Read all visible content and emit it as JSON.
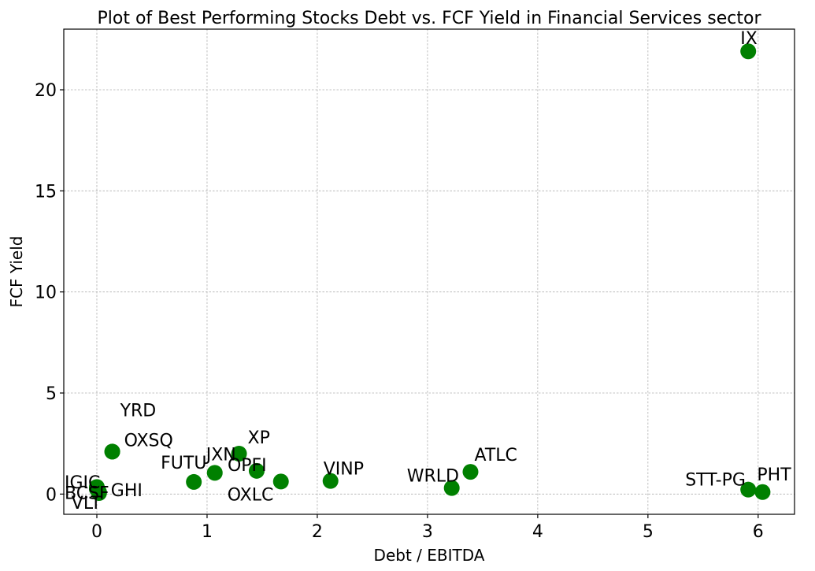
{
  "chart_data": {
    "type": "scatter",
    "title": "Plot of Best Performing Stocks Debt vs. FCF Yield in Financial Services sector",
    "xlabel": "Debt / EBITDA",
    "ylabel": "FCF Yield",
    "xlim": [
      -0.3,
      6.33
    ],
    "ylim": [
      -1.0,
      23.0
    ],
    "xticks": [
      0,
      1,
      2,
      3,
      4,
      5,
      6
    ],
    "yticks": [
      0,
      5,
      10,
      15,
      20
    ],
    "grid": true,
    "marker_color": "#008000",
    "points": [
      {
        "label": "IX",
        "x": 5.91,
        "y": 21.9
      },
      {
        "label": "YRD",
        "x": 0.14,
        "y": 2.1
      },
      {
        "label": "OXSQ",
        "x": 0.14,
        "y": 2.1
      },
      {
        "label": "BCSF",
        "x": 0.0,
        "y": 0.35
      },
      {
        "label": "IGIC",
        "x": 0.0,
        "y": 0.25
      },
      {
        "label": "GHI",
        "x": 0.02,
        "y": 0.1
      },
      {
        "label": "VLT",
        "x": 0.02,
        "y": 0.05
      },
      {
        "label": "FUTU",
        "x": 0.88,
        "y": 0.6
      },
      {
        "label": "JXN",
        "x": 1.07,
        "y": 1.05
      },
      {
        "label": "XP",
        "x": 1.29,
        "y": 2.0
      },
      {
        "label": "OPFI",
        "x": 1.45,
        "y": 1.15
      },
      {
        "label": "OXLC",
        "x": 1.67,
        "y": 0.62
      },
      {
        "label": "VINP",
        "x": 2.12,
        "y": 0.65
      },
      {
        "label": "WRLD",
        "x": 3.22,
        "y": 0.3
      },
      {
        "label": "ATLC",
        "x": 3.39,
        "y": 1.1
      },
      {
        "label": "STT-PG",
        "x": 5.91,
        "y": 0.22
      },
      {
        "label": "PHT",
        "x": 6.04,
        "y": 0.1
      }
    ]
  }
}
